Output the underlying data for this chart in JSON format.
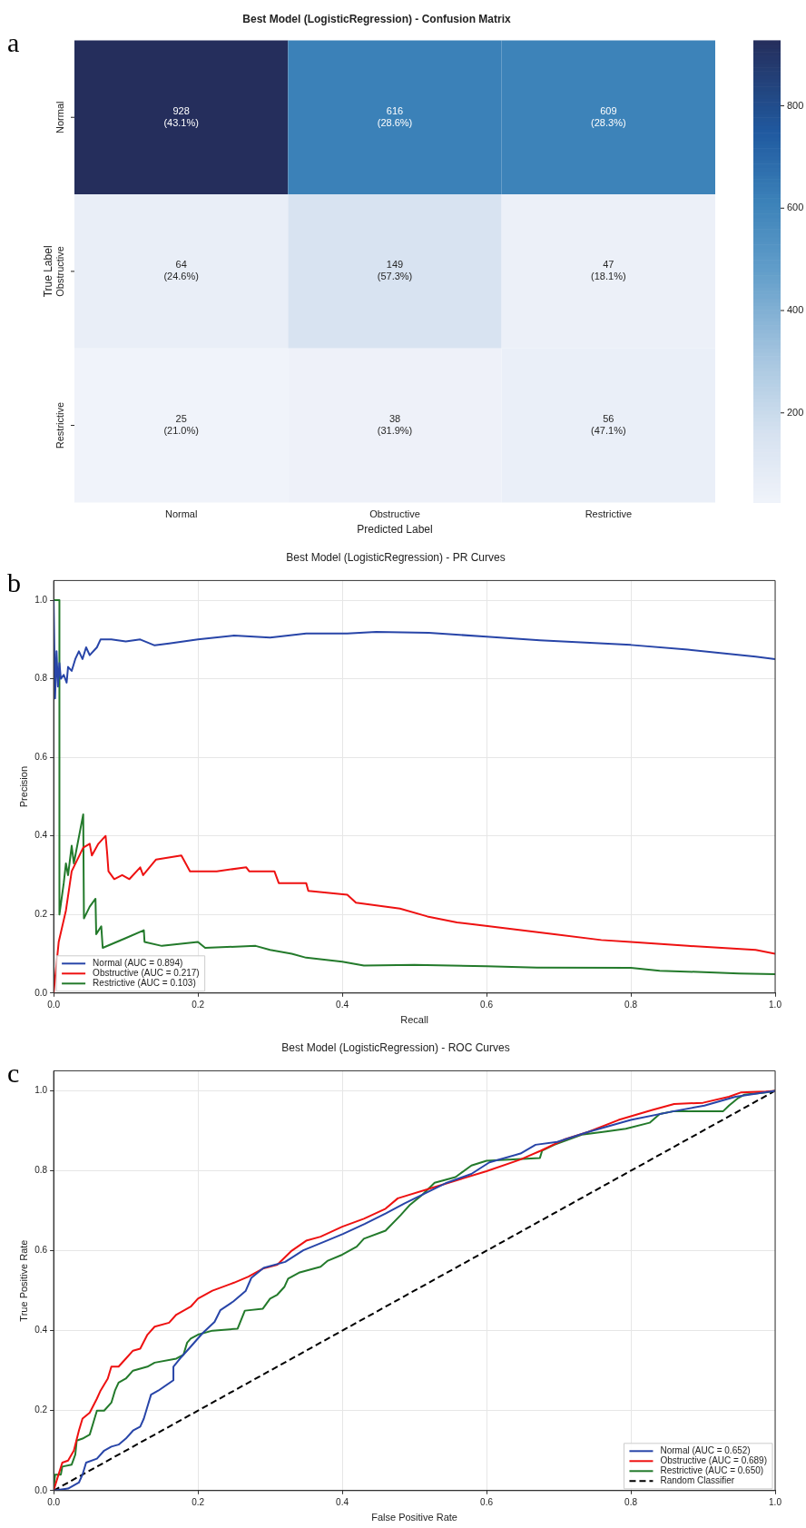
{
  "chart_data": [
    {
      "type": "heatmap",
      "title": "Best Model (LogisticRegression) - Confusion Matrix",
      "xlabel": "Predicted Label",
      "ylabel": "True Label",
      "annotations": [
        "a"
      ],
      "categories": [
        "Normal",
        "Obstructive",
        "Restrictive"
      ],
      "y_categories": [
        "Normal",
        "Obstructive",
        "Restrictive"
      ],
      "cells": [
        [
          928,
          616,
          609
        ],
        [
          64,
          149,
          47
        ],
        [
          25,
          38,
          56
        ]
      ],
      "cell_labels": [
        [
          "928\n(43.1%)",
          "616\n(28.6%)",
          "609\n(28.3%)"
        ],
        [
          "64\n(24.6%)",
          "149\n(57.3%)",
          "47\n(18.1%)"
        ],
        [
          "25\n(21.0%)",
          "38\n(31.9%)",
          "56\n(47.1%)"
        ]
      ],
      "clim": [
        25,
        928
      ],
      "cticks": [
        200,
        400,
        600,
        800
      ]
    },
    {
      "type": "line",
      "title": "Best Model (LogisticRegression) - PR Curves",
      "xlabel": "Recall",
      "ylabel": "Precision",
      "annotations": [
        "b"
      ],
      "grid": true,
      "legend": "bottom left",
      "xlim": [
        0,
        1
      ],
      "ylim": [
        0,
        1.05
      ],
      "xticks": [
        {
          "value": 0,
          "label": "0.0"
        },
        {
          "value": 0.2,
          "label": "0.2"
        },
        {
          "value": 0.4,
          "label": "0.4"
        },
        {
          "value": 0.6,
          "label": "0.6"
        },
        {
          "value": 0.8,
          "label": "0.8"
        },
        {
          "value": 1,
          "label": "1.0"
        }
      ],
      "yticks": [
        {
          "value": 0,
          "label": "0.0"
        },
        {
          "value": 0.2,
          "label": "0.2"
        },
        {
          "value": 0.4,
          "label": "0.4"
        },
        {
          "value": 0.6,
          "label": "0.6"
        },
        {
          "value": 0.8,
          "label": "0.8"
        },
        {
          "value": 1,
          "label": "1.0"
        }
      ],
      "series": [
        {
          "name": "Normal (AUC = 0.894)",
          "color": "#2845a8",
          "x": [
            0,
            0.002,
            0.004,
            0.006,
            0.008,
            0.01,
            0.014,
            0.018,
            0.02,
            0.025,
            0.03,
            0.035,
            0.04,
            0.045,
            0.05,
            0.06,
            0.065,
            0.08,
            0.1,
            0.12,
            0.14,
            0.16,
            0.2,
            0.25,
            0.3,
            0.35,
            0.407,
            0.447,
            0.52,
            0.6,
            0.674,
            0.8,
            0.879,
            0.973,
            1.0
          ],
          "values": [
            1.0,
            0.75,
            0.87,
            0.78,
            0.84,
            0.8,
            0.81,
            0.79,
            0.83,
            0.82,
            0.85,
            0.87,
            0.85,
            0.88,
            0.86,
            0.88,
            0.9,
            0.9,
            0.895,
            0.9,
            0.885,
            0.89,
            0.9,
            0.91,
            0.905,
            0.915,
            0.915,
            0.919,
            0.917,
            0.907,
            0.898,
            0.886,
            0.874,
            0.856,
            0.85
          ]
        },
        {
          "name": "Obstructive (AUC = 0.217)",
          "color": "#ee1111",
          "x": [
            0,
            0.007,
            0.017,
            0.025,
            0.033,
            0.041,
            0.05,
            0.053,
            0.062,
            0.072,
            0.074,
            0.076,
            0.084,
            0.095,
            0.105,
            0.12,
            0.124,
            0.142,
            0.177,
            0.189,
            0.226,
            0.267,
            0.271,
            0.306,
            0.312,
            0.35,
            0.353,
            0.407,
            0.419,
            0.48,
            0.518,
            0.559,
            0.604,
            0.694,
            0.759,
            0.8,
            0.879,
            0.973,
            1.0
          ],
          "values": [
            0,
            0.13,
            0.21,
            0.31,
            0.34,
            0.37,
            0.38,
            0.35,
            0.38,
            0.4,
            0.36,
            0.31,
            0.29,
            0.3,
            0.29,
            0.32,
            0.3,
            0.34,
            0.35,
            0.31,
            0.31,
            0.32,
            0.31,
            0.31,
            0.28,
            0.28,
            0.26,
            0.25,
            0.23,
            0.215,
            0.195,
            0.18,
            0.17,
            0.15,
            0.135,
            0.13,
            0.12,
            0.11,
            0.1
          ]
        },
        {
          "name": "Restrictive (AUC = 0.103)",
          "color": "#237a2b",
          "x": [
            0,
            0.008,
            0.008,
            0.014,
            0.017,
            0.02,
            0.025,
            0.028,
            0.041,
            0.042,
            0.05,
            0.058,
            0.059,
            0.066,
            0.068,
            0.1,
            0.125,
            0.126,
            0.15,
            0.2,
            0.21,
            0.28,
            0.3,
            0.33,
            0.35,
            0.4,
            0.43,
            0.5,
            0.6,
            0.67,
            0.8,
            0.84,
            0.95,
            1.0
          ],
          "values": [
            1.0,
            1.0,
            0.2,
            0.28,
            0.33,
            0.3,
            0.375,
            0.33,
            0.455,
            0.19,
            0.22,
            0.24,
            0.15,
            0.17,
            0.115,
            0.14,
            0.16,
            0.13,
            0.12,
            0.13,
            0.115,
            0.12,
            0.11,
            0.1,
            0.09,
            0.08,
            0.07,
            0.072,
            0.068,
            0.065,
            0.064,
            0.057,
            0.05,
            0.048
          ]
        }
      ]
    },
    {
      "type": "line",
      "title": "Best Model (LogisticRegression) - ROC Curves",
      "xlabel": "False Positive Rate",
      "ylabel": "True Positive Rate",
      "annotations": [
        "c"
      ],
      "grid": true,
      "legend": "bottom right",
      "xlim": [
        0,
        1
      ],
      "ylim": [
        0,
        1.05
      ],
      "xticks": [
        {
          "value": 0,
          "label": "0.0"
        },
        {
          "value": 0.2,
          "label": "0.2"
        },
        {
          "value": 0.4,
          "label": "0.4"
        },
        {
          "value": 0.6,
          "label": "0.6"
        },
        {
          "value": 0.8,
          "label": "0.8"
        },
        {
          "value": 1,
          "label": "1.0"
        }
      ],
      "yticks": [
        {
          "value": 0,
          "label": "0.0"
        },
        {
          "value": 0.2,
          "label": "0.2"
        },
        {
          "value": 0.4,
          "label": "0.4"
        },
        {
          "value": 0.6,
          "label": "0.6"
        },
        {
          "value": 0.8,
          "label": "0.8"
        },
        {
          "value": 1,
          "label": "1.0"
        }
      ],
      "series": [
        {
          "name": "Normal (AUC = 0.652)",
          "color": "#2845a8",
          "x": [
            0,
            0.02,
            0.035,
            0.04,
            0.045,
            0.06,
            0.07,
            0.08,
            0.09,
            0.1,
            0.11,
            0.12,
            0.125,
            0.13,
            0.135,
            0.145,
            0.166,
            0.166,
            0.177,
            0.19,
            0.206,
            0.223,
            0.231,
            0.249,
            0.266,
            0.274,
            0.291,
            0.321,
            0.346,
            0.376,
            0.401,
            0.431,
            0.46,
            0.486,
            0.511,
            0.545,
            0.579,
            0.604,
            0.647,
            0.668,
            0.698,
            0.741,
            0.8,
            0.86,
            0.902,
            0.945,
            1.0
          ],
          "values": [
            0,
            0.005,
            0.02,
            0.04,
            0.07,
            0.08,
            0.1,
            0.11,
            0.115,
            0.13,
            0.15,
            0.16,
            0.18,
            0.21,
            0.24,
            0.25,
            0.276,
            0.31,
            0.334,
            0.36,
            0.393,
            0.422,
            0.451,
            0.473,
            0.499,
            0.532,
            0.557,
            0.572,
            0.601,
            0.623,
            0.642,
            0.667,
            0.693,
            0.718,
            0.74,
            0.77,
            0.792,
            0.821,
            0.843,
            0.865,
            0.872,
            0.897,
            0.927,
            0.949,
            0.963,
            0.985,
            1.0
          ]
        },
        {
          "name": "Obstructive (AUC = 0.689)",
          "color": "#ee1111",
          "x": [
            0,
            0.005,
            0.012,
            0.02,
            0.028,
            0.035,
            0.04,
            0.05,
            0.06,
            0.065,
            0.075,
            0.08,
            0.09,
            0.1,
            0.11,
            0.12,
            0.13,
            0.14,
            0.16,
            0.17,
            0.19,
            0.2,
            0.22,
            0.25,
            0.27,
            0.29,
            0.31,
            0.33,
            0.35,
            0.37,
            0.4,
            0.43,
            0.46,
            0.477,
            0.528,
            0.6,
            0.647,
            0.675,
            0.709,
            0.741,
            0.783,
            0.83,
            0.86,
            0.9,
            0.936,
            0.953,
            0.987,
            1.0
          ],
          "values": [
            0,
            0.03,
            0.07,
            0.075,
            0.1,
            0.15,
            0.18,
            0.195,
            0.23,
            0.25,
            0.28,
            0.31,
            0.31,
            0.33,
            0.35,
            0.355,
            0.39,
            0.41,
            0.42,
            0.44,
            0.46,
            0.48,
            0.5,
            0.52,
            0.535,
            0.555,
            0.565,
            0.6,
            0.625,
            0.635,
            0.66,
            0.68,
            0.705,
            0.731,
            0.759,
            0.799,
            0.828,
            0.85,
            0.879,
            0.897,
            0.927,
            0.952,
            0.967,
            0.97,
            0.985,
            0.996,
            0.998,
            1.0
          ]
        },
        {
          "name": "Restrictive (AUC = 0.650)",
          "color": "#237a2b",
          "x": [
            0,
            0.002,
            0.01,
            0.012,
            0.025,
            0.03,
            0.032,
            0.04,
            0.05,
            0.055,
            0.06,
            0.07,
            0.08,
            0.085,
            0.09,
            0.1,
            0.11,
            0.13,
            0.14,
            0.17,
            0.18,
            0.185,
            0.19,
            0.2,
            0.22,
            0.255,
            0.265,
            0.29,
            0.3,
            0.31,
            0.32,
            0.325,
            0.34,
            0.37,
            0.38,
            0.4,
            0.42,
            0.43,
            0.46,
            0.481,
            0.494,
            0.511,
            0.528,
            0.557,
            0.579,
            0.6,
            0.674,
            0.677,
            0.694,
            0.732,
            0.766,
            0.793,
            0.826,
            0.84,
            0.86,
            0.928,
            0.936,
            0.949,
            0.957,
            0.987,
            1.0
          ],
          "values": [
            0,
            0.04,
            0.04,
            0.06,
            0.065,
            0.09,
            0.125,
            0.13,
            0.14,
            0.17,
            0.2,
            0.2,
            0.22,
            0.25,
            0.27,
            0.28,
            0.3,
            0.31,
            0.32,
            0.33,
            0.34,
            0.37,
            0.38,
            0.39,
            0.4,
            0.405,
            0.45,
            0.455,
            0.48,
            0.49,
            0.51,
            0.53,
            0.545,
            0.56,
            0.575,
            0.59,
            0.61,
            0.63,
            0.65,
            0.689,
            0.715,
            0.74,
            0.77,
            0.784,
            0.813,
            0.825,
            0.832,
            0.85,
            0.865,
            0.89,
            0.898,
            0.905,
            0.92,
            0.942,
            0.949,
            0.949,
            0.963,
            0.982,
            0.99,
            0.996,
            1.0
          ]
        },
        {
          "name": "Random Classifier",
          "color": "#000000",
          "line_style": "dashed",
          "x": [
            0,
            1
          ],
          "values": [
            0,
            1
          ]
        }
      ]
    }
  ]
}
